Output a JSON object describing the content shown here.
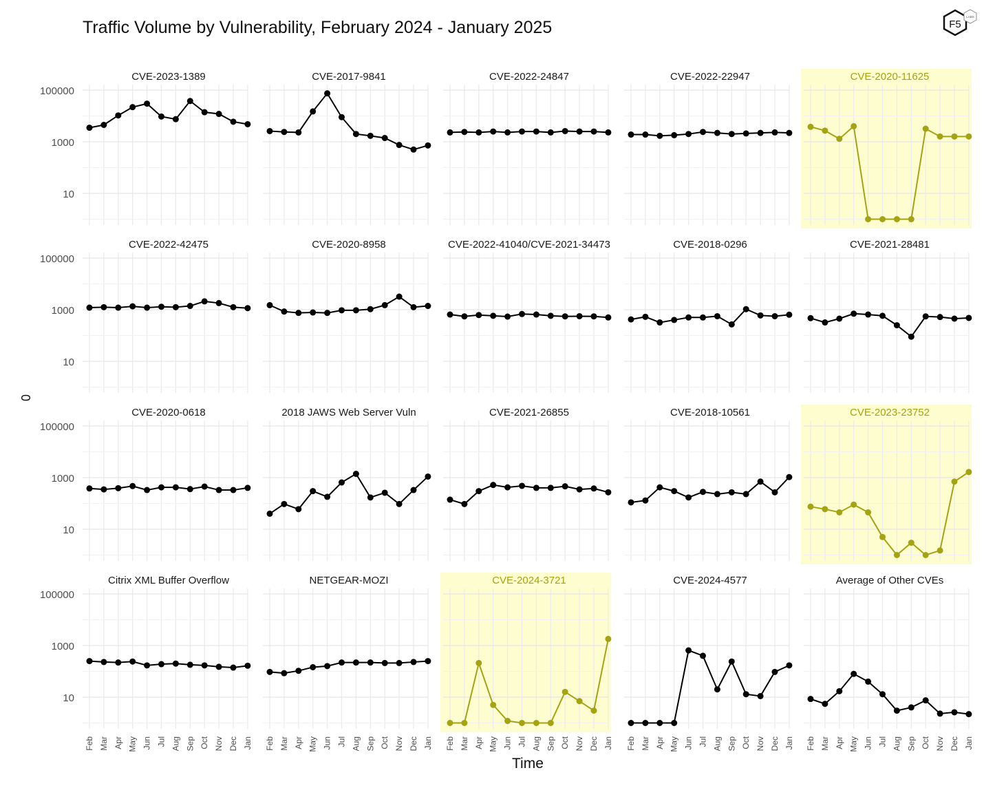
{
  "title": "Traffic Volume by Vulnerability, February 2024 - January 2025",
  "logo_text": "F5",
  "logo_small_text": "LABS",
  "ylabel": "0",
  "xlabel": "Time",
  "highlight_color": "#a3a314",
  "highlight_bg": "#fefdcf",
  "chart_data": {
    "type": "line",
    "scale": "log10",
    "x": [
      "Feb",
      "Mar",
      "Apr",
      "May",
      "Jun",
      "Jul",
      "Aug",
      "Sep",
      "Oct",
      "Nov",
      "Dec",
      "Jan"
    ],
    "y_ticks": [
      10,
      1000,
      100000
    ],
    "y_tick_labels": [
      "10",
      "1000",
      "100000"
    ],
    "panels": [
      {
        "name": "CVE-2023-1389",
        "highlight": false,
        "values": [
          3500,
          4500,
          10500,
          22000,
          30000,
          9500,
          7500,
          38000,
          14000,
          12000,
          6000,
          4800
        ]
      },
      {
        "name": "CVE-2017-9841",
        "highlight": false,
        "values": [
          2600,
          2400,
          2300,
          15000,
          75000,
          9000,
          2000,
          1700,
          1400,
          750,
          500,
          720
        ]
      },
      {
        "name": "CVE-2022-24847",
        "highlight": false,
        "values": [
          2300,
          2400,
          2300,
          2500,
          2300,
          2500,
          2500,
          2300,
          2600,
          2500,
          2500,
          2300
        ]
      },
      {
        "name": "CVE-2022-22947",
        "highlight": false,
        "values": [
          1900,
          1900,
          1700,
          1800,
          2000,
          2400,
          2200,
          2000,
          2100,
          2200,
          2300,
          2200
        ]
      },
      {
        "name": "CVE-2020-11625",
        "highlight": true,
        "values": [
          3800,
          2700,
          1300,
          4000,
          1,
          1,
          1,
          1,
          3200,
          1600,
          1600,
          1600
        ]
      },
      {
        "name": "CVE-2022-42475",
        "highlight": false,
        "values": [
          1200,
          1250,
          1200,
          1350,
          1200,
          1300,
          1250,
          1400,
          2100,
          1800,
          1250,
          1150
        ]
      },
      {
        "name": "CVE-2020-8958",
        "highlight": false,
        "values": [
          1500,
          850,
          750,
          780,
          750,
          950,
          950,
          1050,
          1500,
          3200,
          1250,
          1400
        ]
      },
      {
        "name": "CVE-2022-41040/CVE-2021-34473",
        "highlight": false,
        "values": [
          650,
          550,
          620,
          580,
          540,
          680,
          650,
          580,
          550,
          560,
          550,
          500
        ]
      },
      {
        "name": "CVE-2018-0296",
        "highlight": false,
        "values": [
          420,
          530,
          320,
          400,
          500,
          500,
          560,
          270,
          1050,
          600,
          560,
          640
        ]
      },
      {
        "name": "CVE-2021-28481",
        "highlight": false,
        "values": [
          470,
          320,
          450,
          700,
          650,
          580,
          250,
          90,
          550,
          520,
          450,
          480
        ]
      },
      {
        "name": "CVE-2020-0618",
        "highlight": false,
        "values": [
          380,
          350,
          390,
          470,
          330,
          420,
          420,
          360,
          450,
          330,
          330,
          400
        ]
      },
      {
        "name": "2018 JAWS Web Server Vuln",
        "highlight": false,
        "values": [
          40,
          95,
          60,
          300,
          180,
          650,
          1400,
          170,
          260,
          95,
          330,
          1100
        ]
      },
      {
        "name": "CVE-2021-26855",
        "highlight": false,
        "values": [
          140,
          95,
          300,
          520,
          420,
          480,
          400,
          400,
          460,
          350,
          380,
          270
        ]
      },
      {
        "name": "CVE-2018-10561",
        "highlight": false,
        "values": [
          110,
          130,
          420,
          300,
          170,
          280,
          230,
          270,
          230,
          700,
          270,
          1050
        ]
      },
      {
        "name": "CVE-2023-23752",
        "highlight": true,
        "values": [
          75,
          60,
          45,
          90,
          45,
          5,
          1,
          3,
          1,
          1.5,
          700,
          1650
        ]
      },
      {
        "name": "Citrix XML Buffer Overflow",
        "highlight": false,
        "values": [
          250,
          230,
          220,
          240,
          170,
          190,
          200,
          180,
          170,
          150,
          140,
          165
        ]
      },
      {
        "name": "NETGEAR-MOZI",
        "highlight": false,
        "values": [
          95,
          85,
          105,
          145,
          160,
          220,
          220,
          220,
          210,
          210,
          230,
          250
        ]
      },
      {
        "name": "CVE-2024-3721",
        "highlight": true,
        "values": [
          1,
          1,
          210,
          5,
          1.2,
          1,
          1,
          1,
          16,
          7,
          3,
          1800
        ]
      },
      {
        "name": "CVE-2024-4577",
        "highlight": false,
        "values": [
          1,
          1,
          1,
          1,
          650,
          400,
          20,
          240,
          13,
          11,
          95,
          170
        ]
      },
      {
        "name": "Average of Other CVEs",
        "highlight": false,
        "values": [
          8.5,
          5.5,
          17,
          80,
          40,
          13,
          3,
          4,
          7.5,
          2.3,
          2.6,
          2.2
        ]
      }
    ]
  }
}
